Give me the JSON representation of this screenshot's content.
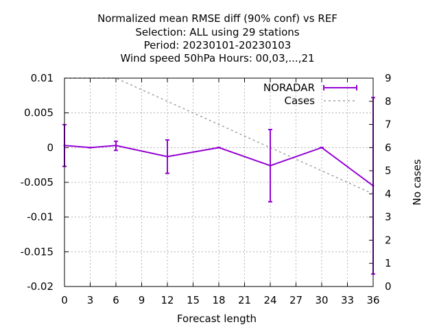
{
  "chart_data": {
    "type": "line",
    "title_lines": [
      "Normalized mean RMSE diff (90% conf) vs REF",
      "Selection: ALL using    29 stations",
      "Period: 20230101-20230103",
      "Wind speed 50hPa   Hours:  00,03,...,21"
    ],
    "xlabel": "Forecast length",
    "ylabel": "",
    "y2label": "No cases",
    "xlim": [
      0,
      36
    ],
    "ylim": [
      -0.02,
      0.01
    ],
    "y2lim": [
      0,
      9
    ],
    "xticks": [
      "0",
      "3",
      "6",
      "9",
      "12",
      "15",
      "18",
      "21",
      "24",
      "27",
      "30",
      "33",
      "36"
    ],
    "yticks": [
      "0.01",
      "0.005",
      "0",
      "-0.005",
      "-0.01",
      "-0.015",
      "-0.02"
    ],
    "y2ticks": [
      "9",
      "8",
      "7",
      "6",
      "5",
      "4",
      "3",
      "2",
      "1",
      "0"
    ],
    "grid": true,
    "legend_position": "top-right",
    "series": [
      {
        "name": "NORADAR",
        "color": "#9400d3",
        "style": "line with errorbars",
        "axis": "y1",
        "x": [
          0,
          3,
          6,
          12,
          18,
          24,
          30,
          36
        ],
        "values": [
          0.0003,
          0.0,
          0.0003,
          -0.0013,
          0.0,
          -0.0026,
          0.0,
          -0.0055
        ],
        "err_low": [
          -0.0027,
          0.0,
          -0.0004,
          -0.0037,
          0.0,
          -0.0078,
          0.0,
          -0.0182
        ],
        "err_high": [
          0.0033,
          0.0,
          0.0009,
          0.0011,
          0.0,
          0.0026,
          0.0,
          0.0072
        ]
      },
      {
        "name": "Cases",
        "color": "#a0a0a0",
        "style": "dashed",
        "axis": "y2",
        "x": [
          0,
          6,
          18,
          24,
          30,
          36
        ],
        "values": [
          9,
          9,
          7,
          6,
          5,
          4
        ]
      }
    ]
  }
}
